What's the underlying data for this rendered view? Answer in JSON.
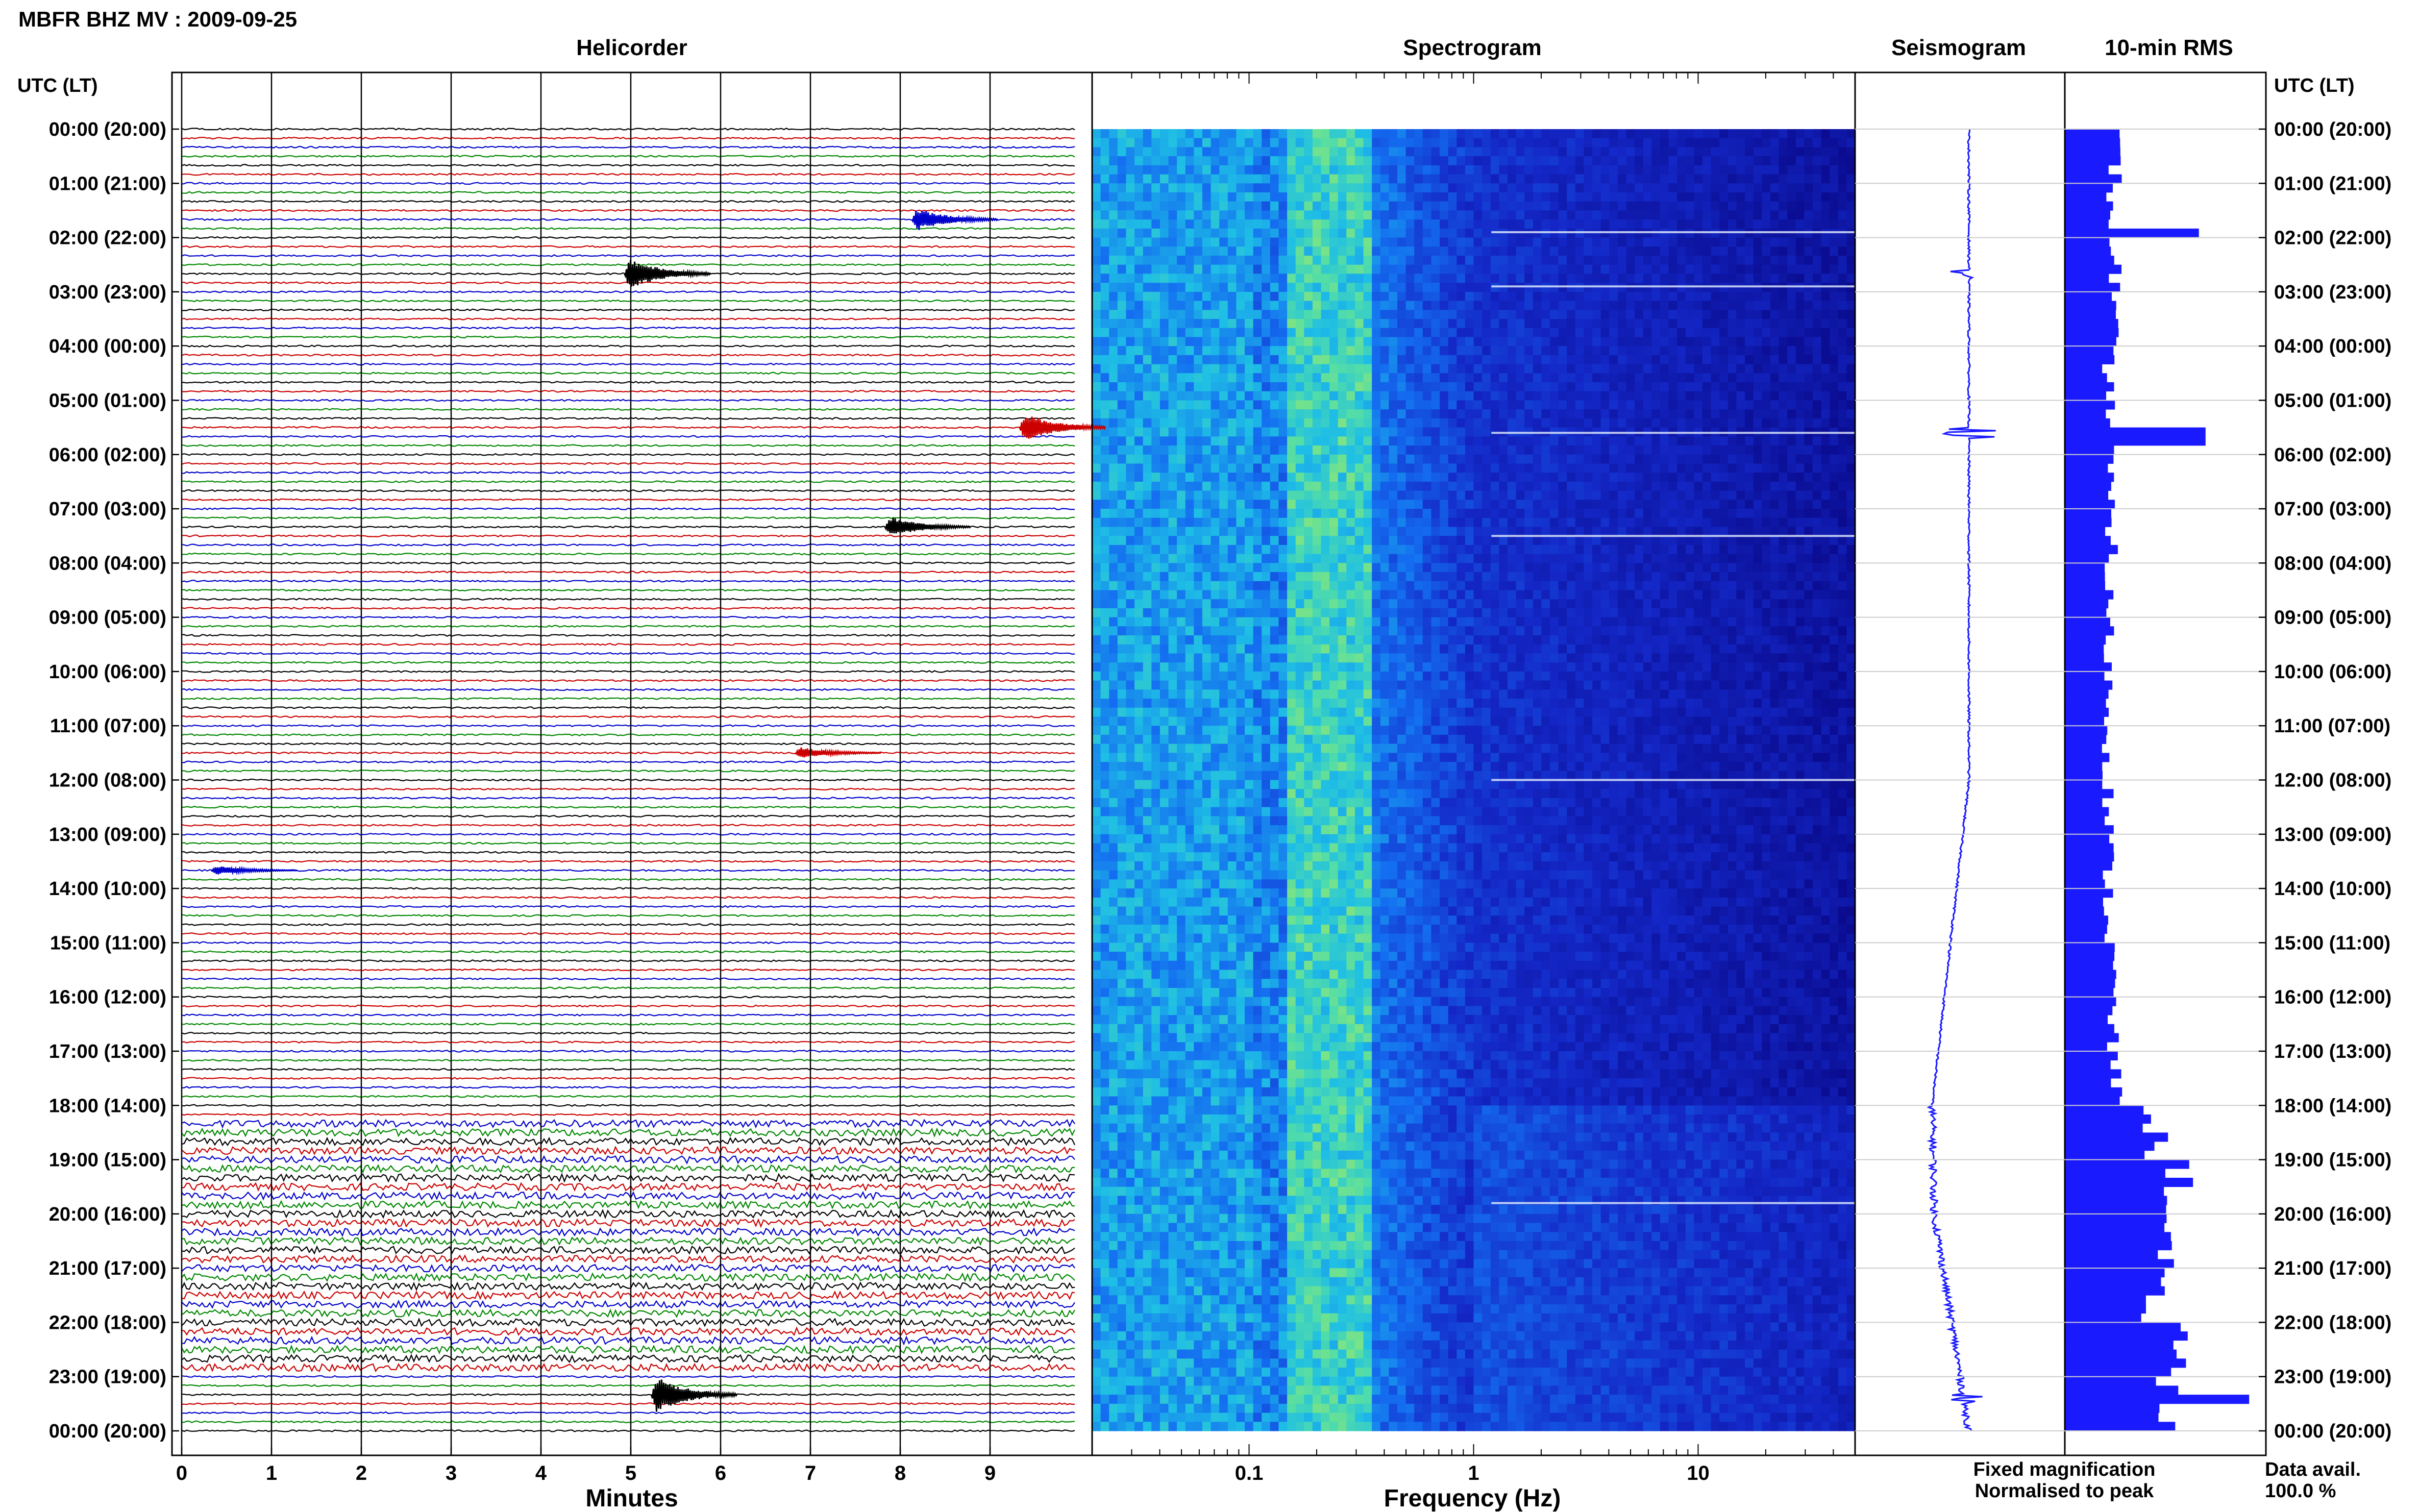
{
  "header": {
    "title": "MBFR BHZ MV : 2009-09-25",
    "utc_label_left": "UTC (LT)",
    "utc_label_right": "UTC (LT)"
  },
  "panels": {
    "helicorder_title": "Helicorder",
    "spectrogram_title": "Spectrogram",
    "seismogram_title": "Seismogram",
    "rms_title": "10-min RMS",
    "helicorder_xlabel": "Minutes",
    "spectrogram_xlabel": "Frequency (Hz)"
  },
  "legend": {
    "fixed": "Fixed magnification",
    "normalised": "Normalised to peak",
    "data_avail_label": "Data avail.",
    "data_avail_value": "100.0 %"
  },
  "colors": {
    "fixed": "#1a1aff",
    "normalised": "#ff1a1a",
    "trace_cycle": [
      "#000000",
      "#cc0000",
      "#0000cc",
      "#008800"
    ],
    "rms_bar": "#1a1aff"
  },
  "chart_data": [
    {
      "type": "line",
      "name": "helicorder",
      "xlabel": "Minutes",
      "xticks": [
        "0",
        "1",
        "2",
        "3",
        "4",
        "5",
        "6",
        "7",
        "8",
        "9"
      ],
      "xlim": [
        0,
        10
      ],
      "hour_labels": [
        "00:00 (20:00)",
        "01:00 (21:00)",
        "02:00 (22:00)",
        "03:00 (23:00)",
        "04:00 (00:00)",
        "05:00 (01:00)",
        "06:00 (02:00)",
        "07:00 (03:00)",
        "08:00 (04:00)",
        "09:00 (05:00)",
        "10:00 (06:00)",
        "11:00 (07:00)",
        "12:00 (08:00)",
        "13:00 (09:00)",
        "14:00 (10:00)",
        "15:00 (11:00)",
        "16:00 (12:00)",
        "17:00 (13:00)",
        "18:00 (14:00)",
        "19:00 (15:00)",
        "20:00 (16:00)",
        "21:00 (17:00)",
        "22:00 (18:00)",
        "23:00 (19:00)",
        "00:00 (20:00)"
      ],
      "traces_per_hour": 6,
      "events": [
        {
          "hour": 1.6,
          "minute": 8.3,
          "amp": 1.0
        },
        {
          "hour": 2.7,
          "minute": 5.1,
          "amp": 1.4
        },
        {
          "hour": 5.5,
          "minute": 9.5,
          "amp": 1.3
        },
        {
          "hour": 7.3,
          "minute": 8.0,
          "amp": 0.9
        },
        {
          "hour": 11.5,
          "minute": 7.0,
          "amp": 0.5
        },
        {
          "hour": 13.6,
          "minute": 0.5,
          "amp": 0.4
        },
        {
          "hour": 23.3,
          "minute": 5.4,
          "amp": 1.6
        }
      ],
      "noisy_hours": [
        18.2,
        23.0
      ]
    },
    {
      "type": "heatmap",
      "name": "spectrogram",
      "xlabel": "Frequency (Hz)",
      "xscale": "log",
      "xlim": [
        0.02,
        50
      ],
      "xticks": [
        "0.1",
        "1",
        "10"
      ],
      "ylim": [
        0,
        24
      ],
      "dominant_band_hz": [
        0.15,
        0.35
      ],
      "high_noise_hours": [
        18,
        24
      ]
    },
    {
      "type": "line",
      "name": "seismogram",
      "ylim": [
        0,
        24
      ],
      "spikes_hours": [
        2.7,
        5.6,
        23.4
      ]
    },
    {
      "type": "bar",
      "name": "rms",
      "orientation": "horizontal",
      "ylim": [
        0,
        24
      ],
      "bins": 144,
      "values_hourly": [
        0.15,
        0.14,
        0.15,
        0.14,
        0.13,
        0.14,
        0.13,
        0.14,
        0.13,
        0.13,
        0.13,
        0.13,
        0.13,
        0.13,
        0.13,
        0.14,
        0.14,
        0.15,
        0.27,
        0.34,
        0.29,
        0.26,
        0.33,
        0.31
      ],
      "peaks": [
        {
          "hour": 1.8,
          "value": 0.4
        },
        {
          "hour": 5.6,
          "value": 0.42
        },
        {
          "hour": 23.4,
          "value": 0.55
        }
      ]
    }
  ]
}
